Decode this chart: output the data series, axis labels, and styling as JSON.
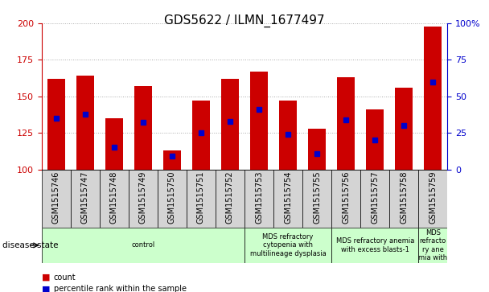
{
  "title": "GDS5622 / ILMN_1677497",
  "samples": [
    "GSM1515746",
    "GSM1515747",
    "GSM1515748",
    "GSM1515749",
    "GSM1515750",
    "GSM1515751",
    "GSM1515752",
    "GSM1515753",
    "GSM1515754",
    "GSM1515755",
    "GSM1515756",
    "GSM1515757",
    "GSM1515758",
    "GSM1515759"
  ],
  "counts": [
    162,
    164,
    135,
    157,
    113,
    147,
    162,
    167,
    147,
    128,
    163,
    141,
    156,
    198
  ],
  "percentiles": [
    135,
    138,
    115,
    132,
    109,
    125,
    133,
    141,
    124,
    111,
    134,
    120,
    130,
    160
  ],
  "ymin": 100,
  "ymax": 200,
  "yticks": [
    100,
    125,
    150,
    175,
    200
  ],
  "right_yticks": [
    0,
    25,
    50,
    75,
    100
  ],
  "bar_color": "#cc0000",
  "percentile_color": "#0000cc",
  "bar_width": 0.6,
  "disease_groups": [
    {
      "label": "control",
      "start": 0,
      "end": 7,
      "color": "#ccffcc"
    },
    {
      "label": "MDS refractory\ncytopenia with\nmultilineage dysplasia",
      "start": 7,
      "end": 10,
      "color": "#ccffcc"
    },
    {
      "label": "MDS refractory anemia\nwith excess blasts-1",
      "start": 10,
      "end": 13,
      "color": "#ccffcc"
    },
    {
      "label": "MDS\nrefracto\nry ane\nmia with",
      "start": 13,
      "end": 14,
      "color": "#ccffcc"
    }
  ],
  "sample_bg_color": "#d4d4d4",
  "legend_count_color": "#cc0000",
  "legend_pct_color": "#0000cc",
  "left_axis_color": "#cc0000",
  "right_axis_color": "#0000cc",
  "grid_color": "#aaaaaa",
  "title_fontsize": 11,
  "tick_fontsize": 7,
  "axis_fontsize": 8,
  "disease_fontsize": 6,
  "legend_fontsize": 7
}
